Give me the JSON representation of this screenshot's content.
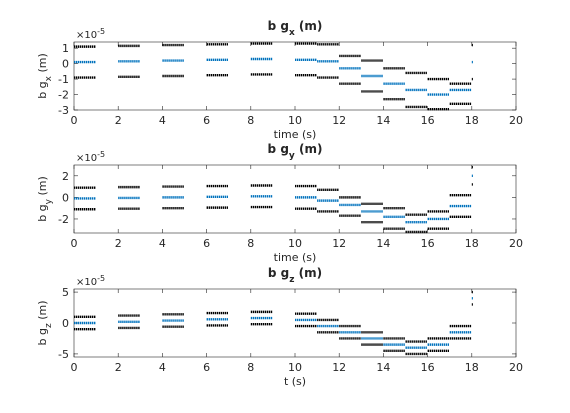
{
  "chart_data": [
    {
      "type": "scatter",
      "title": "b g",
      "title_sub": "x",
      "title_unit": " (m)",
      "xlabel": "time (s)",
      "ylabel": "b g",
      "ylabel_sub": "x",
      "ylabel_unit": " (m)",
      "exponent": "-5",
      "xlim": [
        0,
        20
      ],
      "ylim": [
        -3,
        1.4
      ],
      "xticks": [
        0,
        2,
        4,
        6,
        8,
        10,
        12,
        14,
        16,
        18,
        20
      ],
      "yticks": [
        -3,
        -2,
        -1,
        0,
        1
      ],
      "grid": false,
      "legend": "none",
      "series": [
        {
          "color": "#000000",
          "points": [
            [
              0,
              1.1
            ],
            [
              2,
              1.15
            ],
            [
              4,
              1.2
            ],
            [
              6,
              1.25
            ],
            [
              8,
              1.3
            ],
            [
              10,
              1.3
            ],
            [
              11,
              1.25
            ],
            [
              12,
              0.5
            ],
            [
              13,
              0.2
            ],
            [
              14,
              -0.3
            ],
            [
              15,
              -0.6
            ],
            [
              16,
              -1.0
            ],
            [
              17,
              -1.3
            ],
            [
              18,
              1.2
            ]
          ]
        },
        {
          "color": "#0072BD",
          "points": [
            [
              0,
              0.1
            ],
            [
              2,
              0.15
            ],
            [
              4,
              0.2
            ],
            [
              6,
              0.25
            ],
            [
              8,
              0.3
            ],
            [
              10,
              0.25
            ],
            [
              11,
              0.15
            ],
            [
              12,
              -0.3
            ],
            [
              13,
              -0.8
            ],
            [
              14,
              -1.3
            ],
            [
              15,
              -1.7
            ],
            [
              16,
              -2.0
            ],
            [
              17,
              -1.7
            ],
            [
              18,
              0.1
            ]
          ]
        },
        {
          "color": "#000000",
          "points": [
            [
              0,
              -0.9
            ],
            [
              2,
              -0.85
            ],
            [
              4,
              -0.8
            ],
            [
              6,
              -0.75
            ],
            [
              8,
              -0.7
            ],
            [
              10,
              -0.75
            ],
            [
              11,
              -0.9
            ],
            [
              12,
              -1.3
            ],
            [
              13,
              -1.8
            ],
            [
              14,
              -2.3
            ],
            [
              15,
              -2.8
            ],
            [
              16,
              -2.95
            ],
            [
              17,
              -2.6
            ],
            [
              18,
              -1.0
            ]
          ]
        }
      ]
    },
    {
      "type": "scatter",
      "title": "b g",
      "title_sub": "y",
      "title_unit": " (m)",
      "xlabel": "time (s)",
      "ylabel": "b g",
      "ylabel_sub": "y",
      "ylabel_unit": " (m)",
      "exponent": "-5",
      "xlim": [
        0,
        20
      ],
      "ylim": [
        -3.3,
        3
      ],
      "xticks": [
        0,
        2,
        4,
        6,
        8,
        10,
        12,
        14,
        16,
        18,
        20
      ],
      "yticks": [
        -2,
        0,
        2
      ],
      "grid": false,
      "legend": "none",
      "series": [
        {
          "color": "#000000",
          "points": [
            [
              0,
              0.9
            ],
            [
              2,
              0.95
            ],
            [
              4,
              1.0
            ],
            [
              6,
              1.05
            ],
            [
              8,
              1.1
            ],
            [
              10,
              1.05
            ],
            [
              11,
              0.7
            ],
            [
              12,
              0.0
            ],
            [
              13,
              -0.6
            ],
            [
              14,
              -1.0
            ],
            [
              15,
              -1.6
            ],
            [
              16,
              -1.3
            ],
            [
              17,
              0.2
            ],
            [
              18,
              2.8
            ]
          ]
        },
        {
          "color": "#0072BD",
          "points": [
            [
              0,
              -0.1
            ],
            [
              2,
              -0.05
            ],
            [
              4,
              0.0
            ],
            [
              6,
              0.05
            ],
            [
              8,
              0.1
            ],
            [
              10,
              0.0
            ],
            [
              11,
              -0.3
            ],
            [
              12,
              -0.7
            ],
            [
              13,
              -1.3
            ],
            [
              14,
              -1.8
            ],
            [
              15,
              -2.3
            ],
            [
              16,
              -2.0
            ],
            [
              17,
              -0.8
            ],
            [
              18,
              2.0
            ]
          ]
        },
        {
          "color": "#000000",
          "points": [
            [
              0,
              -1.1
            ],
            [
              2,
              -1.05
            ],
            [
              4,
              -1.0
            ],
            [
              6,
              -0.95
            ],
            [
              8,
              -0.9
            ],
            [
              10,
              -1.05
            ],
            [
              11,
              -1.3
            ],
            [
              12,
              -1.7
            ],
            [
              13,
              -2.3
            ],
            [
              14,
              -2.9
            ],
            [
              15,
              -3.2
            ],
            [
              16,
              -2.9
            ],
            [
              17,
              -1.8
            ],
            [
              18,
              1.2
            ]
          ]
        }
      ]
    },
    {
      "type": "scatter",
      "title": "b g",
      "title_sub": "z",
      "title_unit": " (m)",
      "xlabel": "t (s)",
      "ylabel": "b g",
      "ylabel_sub": "z",
      "ylabel_unit": " (m)",
      "exponent": "-5",
      "xlim": [
        0,
        20
      ],
      "ylim": [
        -5.5,
        5.5
      ],
      "xticks": [
        0,
        2,
        4,
        6,
        8,
        10,
        12,
        14,
        16,
        18,
        20
      ],
      "yticks": [
        -5,
        0,
        5
      ],
      "grid": false,
      "legend": "none",
      "series": [
        {
          "color": "#000000",
          "points": [
            [
              0,
              1.0
            ],
            [
              2,
              1.2
            ],
            [
              4,
              1.4
            ],
            [
              6,
              1.6
            ],
            [
              8,
              1.8
            ],
            [
              10,
              1.5
            ],
            [
              11,
              0.5
            ],
            [
              12,
              -0.5
            ],
            [
              13,
              -1.5
            ],
            [
              14,
              -2.5
            ],
            [
              15,
              -3.0
            ],
            [
              16,
              -2.5
            ],
            [
              17,
              -0.5
            ],
            [
              18,
              5.0
            ]
          ]
        },
        {
          "color": "#0072BD",
          "points": [
            [
              0,
              0.0
            ],
            [
              2,
              0.2
            ],
            [
              4,
              0.4
            ],
            [
              6,
              0.6
            ],
            [
              8,
              0.8
            ],
            [
              10,
              0.5
            ],
            [
              11,
              -0.5
            ],
            [
              12,
              -1.5
            ],
            [
              13,
              -2.5
            ],
            [
              14,
              -3.5
            ],
            [
              15,
              -4.0
            ],
            [
              16,
              -3.5
            ],
            [
              17,
              -1.5
            ],
            [
              18,
              4.0
            ]
          ]
        },
        {
          "color": "#000000",
          "points": [
            [
              0,
              -1.0
            ],
            [
              2,
              -0.8
            ],
            [
              4,
              -0.6
            ],
            [
              6,
              -0.4
            ],
            [
              8,
              -0.2
            ],
            [
              10,
              -0.5
            ],
            [
              11,
              -1.5
            ],
            [
              12,
              -2.5
            ],
            [
              13,
              -3.5
            ],
            [
              14,
              -4.5
            ],
            [
              15,
              -5.0
            ],
            [
              16,
              -4.5
            ],
            [
              17,
              -2.5
            ],
            [
              18,
              3.0
            ]
          ]
        }
      ]
    }
  ]
}
